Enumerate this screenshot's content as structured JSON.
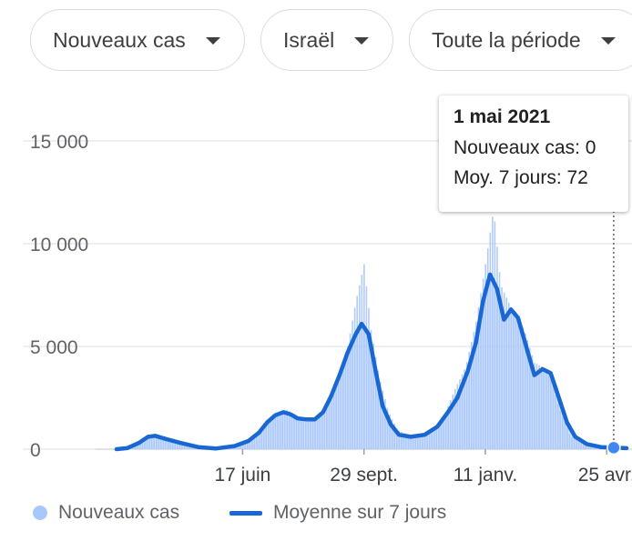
{
  "filters": {
    "metric": "Nouveaux cas",
    "location": "Israël",
    "period": "Toute la période"
  },
  "tooltip": {
    "date": "1 mai 2021",
    "daily_line": "Nouveaux cas: 0",
    "avg_line": "Moy. 7 jours: 72"
  },
  "legend": {
    "bars_label": "Nouveaux cas",
    "line_label": "Moyenne sur 7 jours"
  },
  "colors": {
    "bars": "#a8c7fa",
    "line": "#1967d2",
    "grid": "#e8eaed",
    "marker": "#4285f4"
  },
  "chart_data": {
    "type": "area",
    "title": "",
    "xlabel": "",
    "ylabel": "",
    "ylim": [
      0,
      15000
    ],
    "y_ticks": [
      0,
      5000,
      10000,
      15000
    ],
    "y_tick_labels": [
      "0",
      "5 000",
      "10 000",
      "15 000"
    ],
    "x_ticks": [
      "2020-06-17",
      "2020-09-29",
      "2021-01-11",
      "2021-04-25"
    ],
    "x_tick_labels": [
      "17 juin",
      "29 sept.",
      "11 janv.",
      "25 avr."
    ],
    "x_range": [
      "2020-03-01",
      "2021-05-12"
    ],
    "grid": true,
    "legend_position": "bottom",
    "series": [
      {
        "name": "Nouveaux cas",
        "kind": "bars",
        "points": [
          [
            "2020-03-01",
            0
          ],
          [
            "2020-03-15",
            200
          ],
          [
            "2020-03-25",
            500
          ],
          [
            "2020-04-01",
            750
          ],
          [
            "2020-04-10",
            600
          ],
          [
            "2020-04-20",
            400
          ],
          [
            "2020-05-01",
            150
          ],
          [
            "2020-05-15",
            30
          ],
          [
            "2020-06-01",
            80
          ],
          [
            "2020-06-17",
            300
          ],
          [
            "2020-06-27",
            600
          ],
          [
            "2020-07-05",
            1200
          ],
          [
            "2020-07-15",
            1700
          ],
          [
            "2020-07-25",
            1900
          ],
          [
            "2020-08-01",
            1700
          ],
          [
            "2020-08-10",
            1300
          ],
          [
            "2020-08-20",
            1500
          ],
          [
            "2020-08-28",
            2000
          ],
          [
            "2020-09-05",
            3200
          ],
          [
            "2020-09-15",
            5000
          ],
          [
            "2020-09-22",
            7200
          ],
          [
            "2020-09-29",
            9000
          ],
          [
            "2020-10-05",
            5800
          ],
          [
            "2020-10-12",
            3500
          ],
          [
            "2020-10-20",
            1800
          ],
          [
            "2020-10-28",
            900
          ],
          [
            "2020-11-10",
            650
          ],
          [
            "2020-11-25",
            900
          ],
          [
            "2020-12-05",
            1400
          ],
          [
            "2020-12-15",
            2800
          ],
          [
            "2020-12-25",
            4000
          ],
          [
            "2021-01-03",
            6200
          ],
          [
            "2021-01-11",
            9000
          ],
          [
            "2021-01-18",
            11700
          ],
          [
            "2021-01-24",
            8000
          ],
          [
            "2021-02-01",
            7000
          ],
          [
            "2021-02-08",
            6500
          ],
          [
            "2021-02-15",
            5500
          ],
          [
            "2021-02-22",
            4200
          ],
          [
            "2021-03-01",
            4000
          ],
          [
            "2021-03-08",
            3500
          ],
          [
            "2021-03-15",
            2000
          ],
          [
            "2021-03-25",
            600
          ],
          [
            "2021-04-05",
            300
          ],
          [
            "2021-04-20",
            150
          ],
          [
            "2021-05-01",
            0
          ],
          [
            "2021-05-12",
            50
          ]
        ]
      },
      {
        "name": "Moyenne sur 7 jours",
        "kind": "line",
        "points": [
          [
            "2020-03-01",
            0
          ],
          [
            "2020-03-10",
            50
          ],
          [
            "2020-03-20",
            300
          ],
          [
            "2020-03-28",
            600
          ],
          [
            "2020-04-03",
            650
          ],
          [
            "2020-04-12",
            500
          ],
          [
            "2020-04-25",
            300
          ],
          [
            "2020-05-10",
            100
          ],
          [
            "2020-05-25",
            30
          ],
          [
            "2020-06-10",
            150
          ],
          [
            "2020-06-22",
            400
          ],
          [
            "2020-07-01",
            800
          ],
          [
            "2020-07-08",
            1300
          ],
          [
            "2020-07-15",
            1650
          ],
          [
            "2020-07-22",
            1800
          ],
          [
            "2020-07-28",
            1700
          ],
          [
            "2020-08-03",
            1500
          ],
          [
            "2020-08-10",
            1450
          ],
          [
            "2020-08-18",
            1450
          ],
          [
            "2020-08-25",
            1800
          ],
          [
            "2020-09-01",
            2600
          ],
          [
            "2020-09-08",
            3600
          ],
          [
            "2020-09-15",
            4700
          ],
          [
            "2020-09-22",
            5600
          ],
          [
            "2020-09-27",
            6100
          ],
          [
            "2020-10-03",
            5600
          ],
          [
            "2020-10-09",
            3800
          ],
          [
            "2020-10-15",
            2100
          ],
          [
            "2020-10-22",
            1200
          ],
          [
            "2020-10-29",
            700
          ],
          [
            "2020-11-08",
            600
          ],
          [
            "2020-11-20",
            700
          ],
          [
            "2020-12-01",
            1100
          ],
          [
            "2020-12-10",
            1800
          ],
          [
            "2020-12-18",
            2500
          ],
          [
            "2020-12-27",
            3800
          ],
          [
            "2021-01-03",
            5200
          ],
          [
            "2021-01-09",
            7200
          ],
          [
            "2021-01-15",
            8500
          ],
          [
            "2021-01-21",
            7800
          ],
          [
            "2021-01-27",
            6300
          ],
          [
            "2021-02-02",
            6800
          ],
          [
            "2021-02-08",
            6400
          ],
          [
            "2021-02-15",
            5000
          ],
          [
            "2021-02-22",
            3600
          ],
          [
            "2021-03-01",
            3900
          ],
          [
            "2021-03-08",
            3700
          ],
          [
            "2021-03-15",
            2500
          ],
          [
            "2021-03-22",
            1300
          ],
          [
            "2021-03-29",
            600
          ],
          [
            "2021-04-08",
            250
          ],
          [
            "2021-04-20",
            100
          ],
          [
            "2021-05-01",
            72
          ],
          [
            "2021-05-12",
            50
          ]
        ]
      }
    ],
    "highlight": {
      "date": "2021-05-01",
      "value": 72
    }
  }
}
